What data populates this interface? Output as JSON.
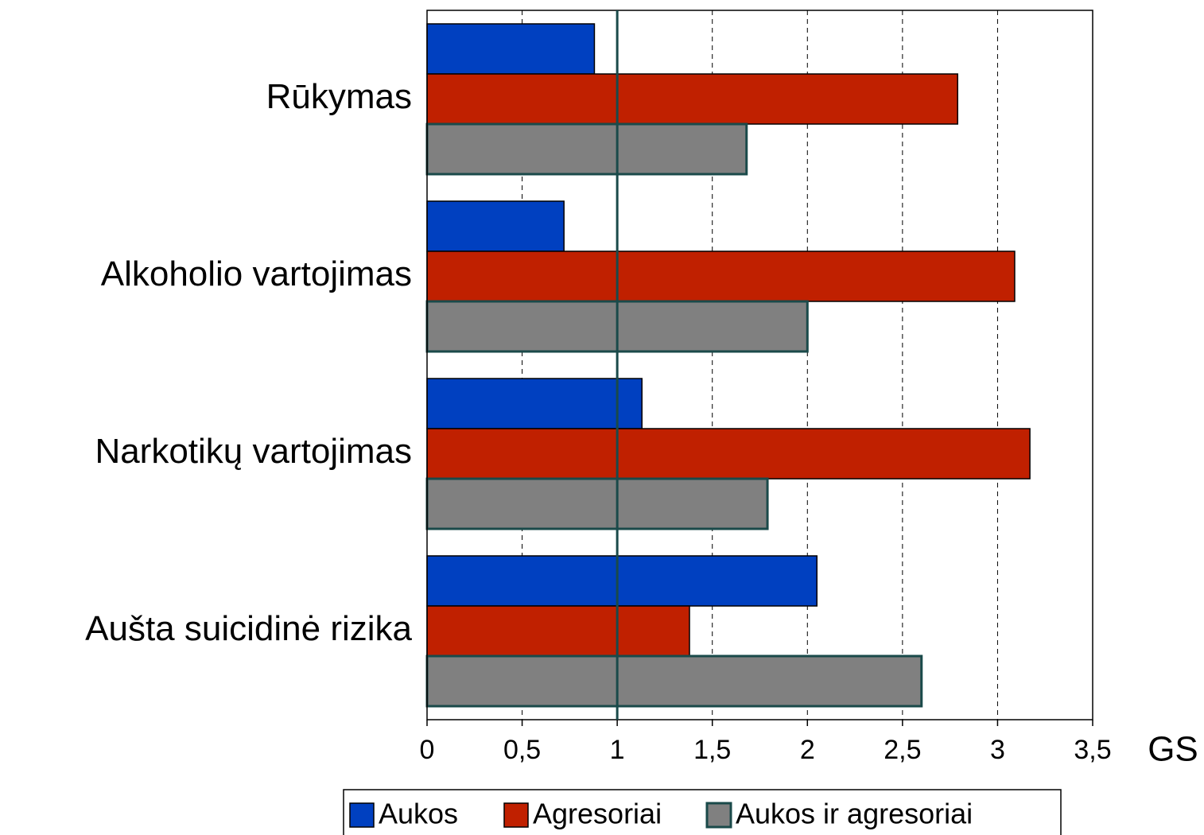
{
  "chart_data": {
    "type": "barh",
    "categories": [
      "Rūkymas",
      "Alkoholio vartojimas",
      "Narkotikų vartojimas",
      "Aušta suicidinė rizika"
    ],
    "series": [
      {
        "name": "Aukos",
        "color": "#0040c0",
        "edgecolor": "#000000",
        "values": [
          0.88,
          0.72,
          1.13,
          2.05
        ]
      },
      {
        "name": "Agresoriai",
        "color": "#c02000",
        "edgecolor": "#000000",
        "values": [
          2.79,
          3.09,
          3.17,
          1.38
        ]
      },
      {
        "name": "Aukos ir agresoriai",
        "color": "#808080",
        "edgecolor": "#1a4a4a",
        "values": [
          1.68,
          2.0,
          1.79,
          2.6
        ]
      }
    ],
    "xlabel": "GS",
    "xlim": [
      0,
      3.5
    ],
    "xticks": [
      0,
      {
        "value": 0.5,
        "label": "0,5"
      },
      1,
      {
        "value": 1.5,
        "label": "1,5"
      },
      2,
      {
        "value": 2.5,
        "label": "2,5"
      },
      3,
      {
        "value": 3.5,
        "label": "3,5"
      }
    ],
    "reference_line": 1,
    "reference_color": "#1a4a4a",
    "grid": true,
    "legend": "bottom"
  }
}
